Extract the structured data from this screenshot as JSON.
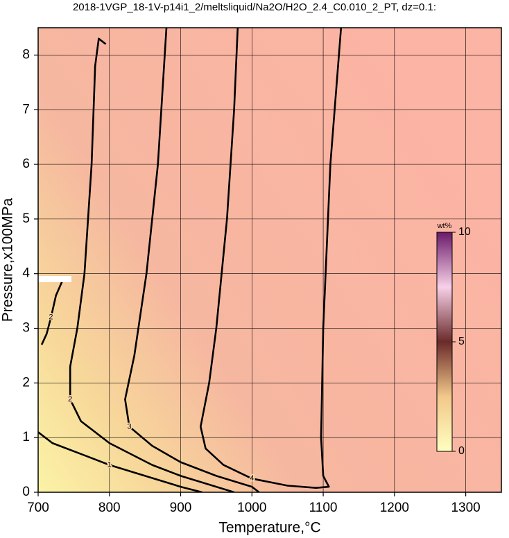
{
  "chart_data": {
    "type": "contour",
    "title": "2018-1VGP_18-1V-p14i1_2/meltsliquid/Na2O/H2O_2.4_C0.010_2_PT, dz=0.1:",
    "x_label": "Temperature,°C",
    "y_label": "Pressure,x100MPa",
    "xlim": [
      700,
      1350
    ],
    "ylim": [
      0,
      8.5
    ],
    "xticks": [
      700,
      800,
      900,
      1000,
      1100,
      1200,
      1300
    ],
    "yticks": [
      0,
      1,
      2,
      3,
      4,
      5,
      6,
      7,
      8
    ],
    "grid": true,
    "contours": [
      {
        "level": 1,
        "x": [
          700,
          720,
          760,
          800,
          850,
          900,
          930
        ],
        "y": [
          1.1,
          0.9,
          0.7,
          0.5,
          0.3,
          0.1,
          0
        ]
      },
      {
        "level": 2,
        "x": [
          795,
          785,
          780,
          775,
          765,
          755,
          745,
          745,
          760,
          800,
          860,
          900,
          950,
          975
        ],
        "y": [
          8.2,
          8.3,
          7.8,
          6,
          4,
          3,
          2.3,
          1.7,
          1.3,
          0.9,
          0.5,
          0.3,
          0.1,
          0
        ]
      },
      {
        "level": 2,
        "x": [
          705,
          712,
          718,
          725,
          735
        ],
        "y": [
          2.7,
          2.9,
          3.2,
          3.6,
          3.9
        ]
      },
      {
        "level": 3,
        "x": [
          880,
          868,
          852,
          835,
          822,
          828,
          860,
          900,
          950,
          1000,
          1010
        ],
        "y": [
          8.5,
          6,
          4,
          2.5,
          1.7,
          1.2,
          0.85,
          0.55,
          0.3,
          0.1,
          0
        ]
      },
      {
        "level": 4,
        "x": [
          980,
          975,
          965,
          950,
          940,
          928,
          935,
          960,
          1000,
          1050,
          1090,
          1108,
          1100,
          1097,
          1100,
          1110,
          1125
        ],
        "y": [
          8.5,
          7,
          5,
          3,
          2,
          1.2,
          0.8,
          0.5,
          0.25,
          0.12,
          0.08,
          0.1,
          0.3,
          1,
          3,
          6,
          8.5
        ]
      }
    ],
    "colorbar": {
      "label": "wt%",
      "lim": [
        0,
        10
      ],
      "ticks": [
        0,
        5,
        10
      ]
    }
  }
}
